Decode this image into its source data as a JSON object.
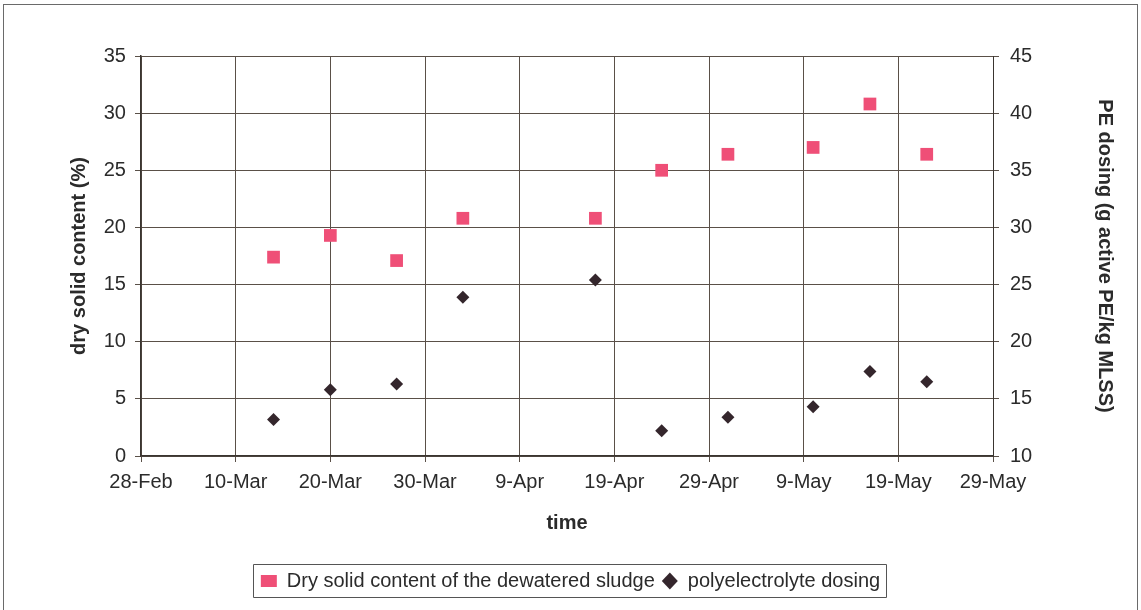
{
  "chart_data": {
    "type": "scatter",
    "xlabel": "time",
    "ylabel": "dry solid content (%)",
    "y2label": "PE dosing (g active PE/kg MLSS)",
    "xlim": [
      "--02-28",
      "--05-29"
    ],
    "xticks": [
      {
        "value": "--02-28",
        "label": "28-Feb"
      },
      {
        "value": "--03-10",
        "label": "10-Mar"
      },
      {
        "value": "--03-20",
        "label": "20-Mar"
      },
      {
        "value": "--03-30",
        "label": "30-Mar"
      },
      {
        "value": "--04-09",
        "label": "9-Apr"
      },
      {
        "value": "--04-19",
        "label": "19-Apr"
      },
      {
        "value": "--04-29",
        "label": "29-Apr"
      },
      {
        "value": "--05-09",
        "label": "9-May"
      },
      {
        "value": "--05-19",
        "label": "19-May"
      },
      {
        "value": "--05-29",
        "label": "29-May"
      }
    ],
    "ylim": [
      0,
      35
    ],
    "yticks": [
      0,
      5,
      10,
      15,
      20,
      25,
      30,
      35
    ],
    "y2lim": [
      10,
      45
    ],
    "y2ticks": [
      10,
      15,
      20,
      25,
      30,
      35,
      40,
      45
    ],
    "grid": true,
    "legend": "bottom",
    "x": [
      "--03-14",
      "--03-20",
      "--03-27",
      "--04-03",
      "--04-17",
      "--04-24",
      "--05-01",
      "--05-10",
      "--05-16",
      "--05-22"
    ],
    "series": [
      {
        "name": "Dry solid content of the dewatered sludge",
        "color": "#ef4f77",
        "marker": "square",
        "values": [
          17.4,
          19.3,
          17.1,
          20.8,
          20.8,
          25.0,
          26.4,
          27.0,
          30.8,
          26.4
        ]
      },
      {
        "name": "polyelectrolyte dosing",
        "color": "#34262c",
        "marker": "diamond",
        "axis": "y2",
        "values": [
          13.2,
          15.8,
          16.3,
          23.9,
          25.4,
          12.2,
          13.4,
          14.3,
          17.4,
          16.5
        ]
      }
    ]
  }
}
